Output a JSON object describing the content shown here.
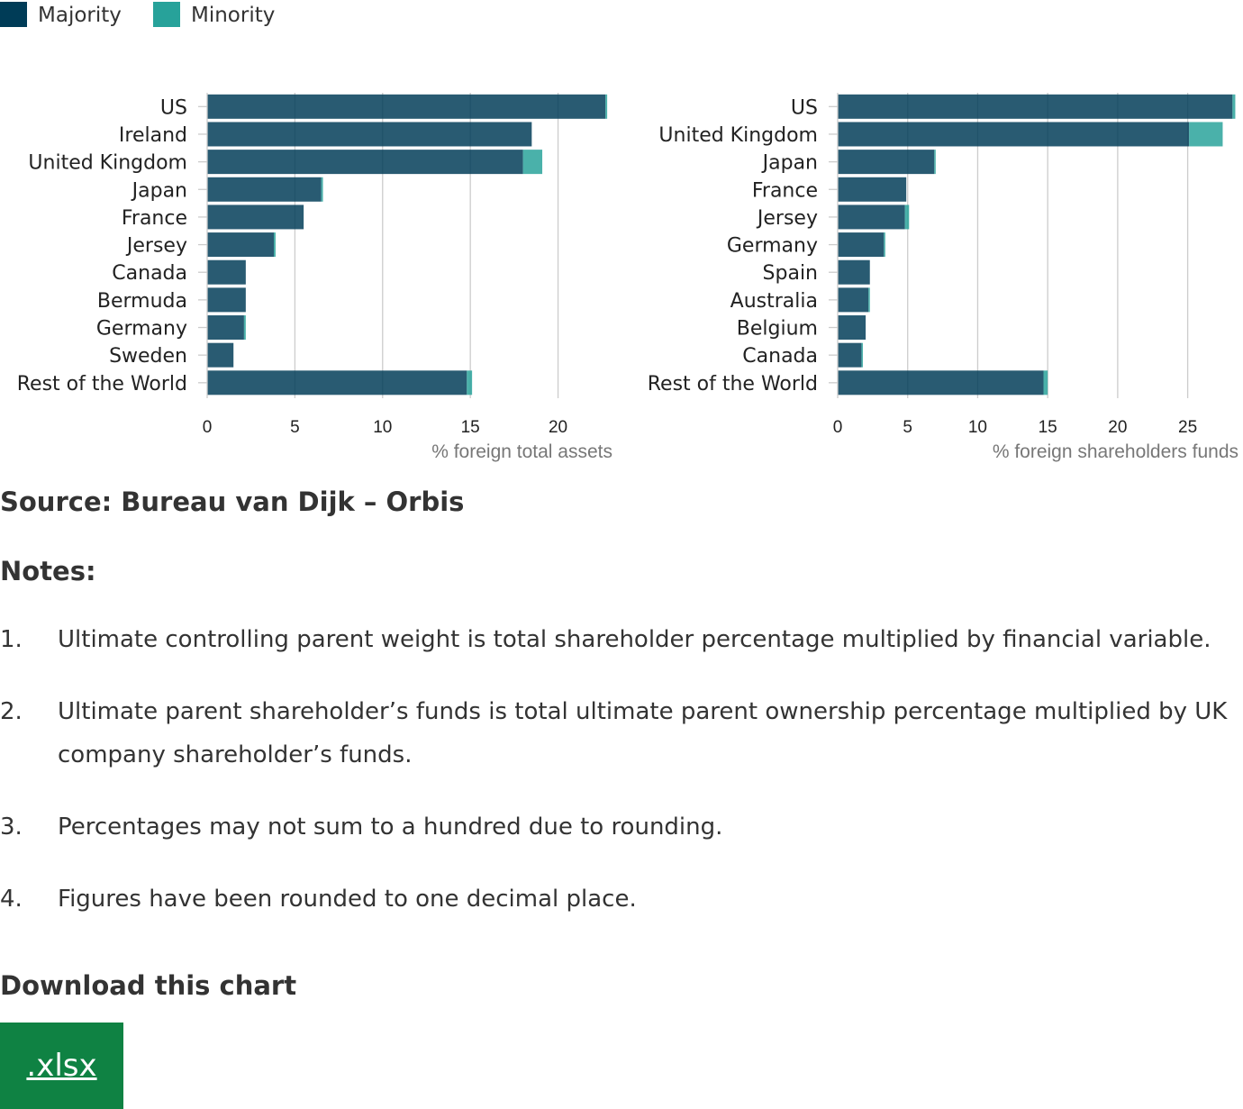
{
  "legend": {
    "items": [
      {
        "label": "Majority",
        "color": "#003c57"
      },
      {
        "label": "Minority",
        "color": "#27a29a"
      }
    ]
  },
  "chart_data": [
    {
      "type": "bar",
      "orientation": "horizontal",
      "stacked": true,
      "categories": [
        "US",
        "Ireland",
        "United Kingdom",
        "Japan",
        "France",
        "Jersey",
        "Canada",
        "Bermuda",
        "Germany",
        "Sweden",
        "Rest of the World"
      ],
      "series": [
        {
          "name": "Majority",
          "color": "#003c57",
          "values": [
            22.7,
            18.5,
            18.0,
            6.5,
            5.5,
            3.8,
            2.2,
            2.2,
            2.1,
            1.5,
            14.8
          ]
        },
        {
          "name": "Minority",
          "color": "#27a29a",
          "values": [
            0.1,
            0.0,
            1.1,
            0.1,
            0.0,
            0.1,
            0.0,
            0.0,
            0.1,
            0.0,
            0.3
          ]
        }
      ],
      "xlabel": "% foreign total assets",
      "xlim": [
        0,
        23
      ],
      "xticks": [
        0,
        5,
        10,
        15,
        20
      ],
      "grid": true
    },
    {
      "type": "bar",
      "orientation": "horizontal",
      "stacked": true,
      "categories": [
        "US",
        "United Kingdom",
        "Japan",
        "France",
        "Jersey",
        "Germany",
        "Spain",
        "Australia",
        "Belgium",
        "Canada",
        "Rest of the World"
      ],
      "series": [
        {
          "name": "Majority",
          "color": "#003c57",
          "values": [
            28.2,
            25.1,
            6.9,
            4.9,
            4.8,
            3.3,
            2.3,
            2.2,
            2.0,
            1.7,
            14.7
          ]
        },
        {
          "name": "Minority",
          "color": "#27a29a",
          "values": [
            0.2,
            2.4,
            0.1,
            0.0,
            0.3,
            0.1,
            0.0,
            0.1,
            0.0,
            0.1,
            0.3
          ]
        }
      ],
      "xlabel": "% foreign shareholders funds",
      "xlim": [
        0,
        28.5
      ],
      "xticks": [
        0,
        5,
        10,
        15,
        20,
        25
      ],
      "grid": true
    }
  ],
  "source": "Source: Bureau van Dijk – Orbis",
  "notes": {
    "title": "Notes:",
    "items": [
      {
        "num": "1.",
        "text": "Ultimate controlling parent weight is total shareholder percentage multiplied by financial variable."
      },
      {
        "num": "2.",
        "text": "Ultimate parent shareholder’s funds is total ultimate parent ownership percentage multiplied by UK company shareholder’s funds."
      },
      {
        "num": "3.",
        "text": "Percentages may not sum to a hundred due to rounding."
      },
      {
        "num": "4.",
        "text": "Figures have been rounded to one decimal place."
      }
    ]
  },
  "download": {
    "title": "Download this chart",
    "button_label": ".xlsx"
  }
}
